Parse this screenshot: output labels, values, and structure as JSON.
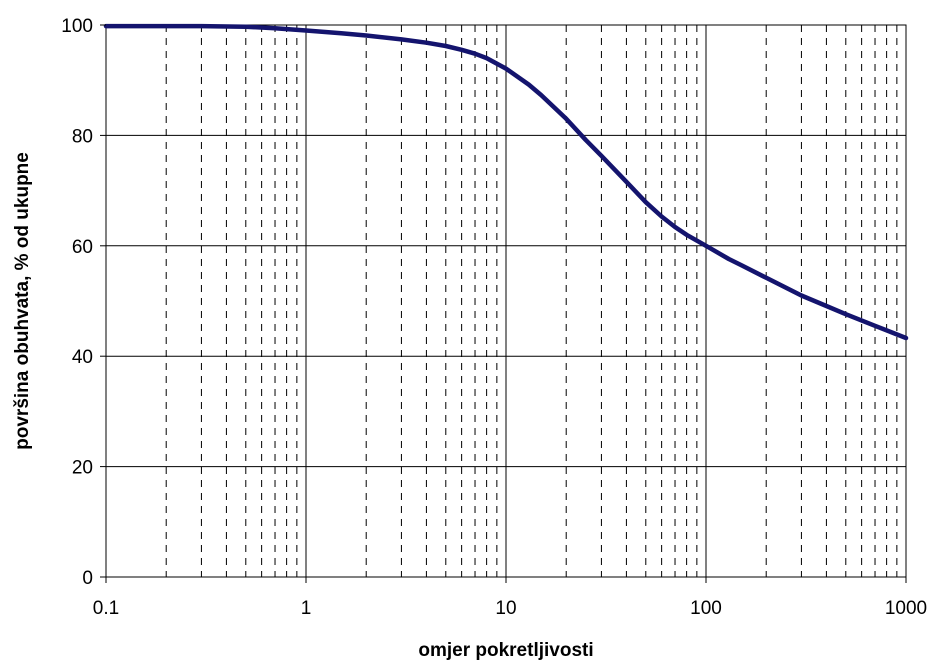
{
  "chart_data": {
    "type": "line",
    "title": "",
    "xlabel": "omjer pokretljivosti",
    "ylabel": "površina obuhvata, % od ukupne",
    "x_scale": "log",
    "xlim": [
      0.1,
      1000
    ],
    "ylim": [
      0,
      100
    ],
    "x_ticks": [
      0.1,
      1,
      10,
      100,
      1000
    ],
    "x_tick_labels": [
      "0.1",
      "1",
      "10",
      "100",
      "1000"
    ],
    "y_ticks": [
      0,
      20,
      40,
      60,
      80,
      100
    ],
    "y_tick_labels": [
      "0",
      "20",
      "40",
      "60",
      "80",
      "100"
    ],
    "grid": {
      "major": true,
      "minor_x_dashed": true
    },
    "series": [
      {
        "color": "#14146e",
        "x": [
          0.1,
          0.2,
          0.3,
          0.5,
          0.7,
          1,
          1.5,
          2,
          3,
          4,
          5,
          6,
          7,
          8,
          10,
          13,
          15,
          20,
          25,
          30,
          40,
          50,
          60,
          70,
          80,
          100,
          130,
          150,
          200,
          300,
          400,
          500,
          700,
          1000
        ],
        "y": [
          99.8,
          99.8,
          99.8,
          99.7,
          99.4,
          99.0,
          98.5,
          98.1,
          97.4,
          96.8,
          96.2,
          95.5,
          94.8,
          94.0,
          92.1,
          89.2,
          87.3,
          83.0,
          79.2,
          76.3,
          71.6,
          67.9,
          65.3,
          63.4,
          62.0,
          60.0,
          57.6,
          56.5,
          54.2,
          51.0,
          49.1,
          47.6,
          45.5,
          43.3
        ]
      }
    ]
  }
}
